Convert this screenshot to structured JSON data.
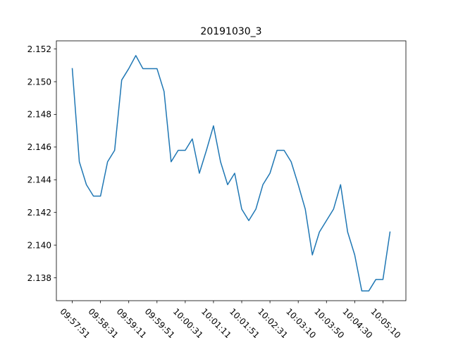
{
  "chart_data": {
    "type": "line",
    "title": "20191030_3",
    "xlabel": "",
    "ylabel": "",
    "ylim": [
      2.1366,
      2.1525
    ],
    "yticks": [
      2.138,
      2.14,
      2.142,
      2.144,
      2.146,
      2.148,
      2.15,
      2.152
    ],
    "ytick_labels": [
      "2.138",
      "2.140",
      "2.142",
      "2.144",
      "2.146",
      "2.148",
      "2.150",
      "2.152"
    ],
    "xticks": [
      0,
      4,
      8,
      12,
      16,
      20,
      24,
      28,
      32,
      36,
      40,
      44
    ],
    "xtick_labels": [
      "09:57:51",
      "09:58:31",
      "09:59:11",
      "09:59:51",
      "10:00:31",
      "10:01:11",
      "10:01:51",
      "10:02:31",
      "10:03:10",
      "10:03:50",
      "10:04:30",
      "10:05:10"
    ],
    "grid": false,
    "legend": "none",
    "series": [
      {
        "color": "#1f77b4",
        "x": [
          0,
          1,
          2,
          3,
          4,
          5,
          6,
          7,
          8,
          9,
          10,
          11,
          12,
          13,
          14,
          15,
          16,
          17,
          18,
          19,
          20,
          21,
          22,
          23,
          24,
          25,
          26,
          27,
          28,
          29,
          30,
          31,
          32,
          33,
          34,
          35,
          36,
          37,
          38,
          39,
          40,
          41,
          42,
          43,
          44,
          45
        ],
        "values": [
          2.1508,
          2.1451,
          2.1437,
          2.143,
          2.143,
          2.1451,
          2.1458,
          2.1501,
          2.1508,
          2.1516,
          2.1508,
          2.1508,
          2.1508,
          2.1494,
          2.1451,
          2.1458,
          2.1458,
          2.1465,
          2.1444,
          2.1458,
          2.1473,
          2.1451,
          2.1437,
          2.1444,
          2.1422,
          2.1415,
          2.1422,
          2.1437,
          2.1444,
          2.1458,
          2.1458,
          2.1451,
          2.1437,
          2.1422,
          2.1394,
          2.1408,
          2.1415,
          2.1422,
          2.1437,
          2.1408,
          2.1394,
          2.1372,
          2.1372,
          2.1379,
          2.1379,
          2.1408
        ]
      }
    ]
  }
}
